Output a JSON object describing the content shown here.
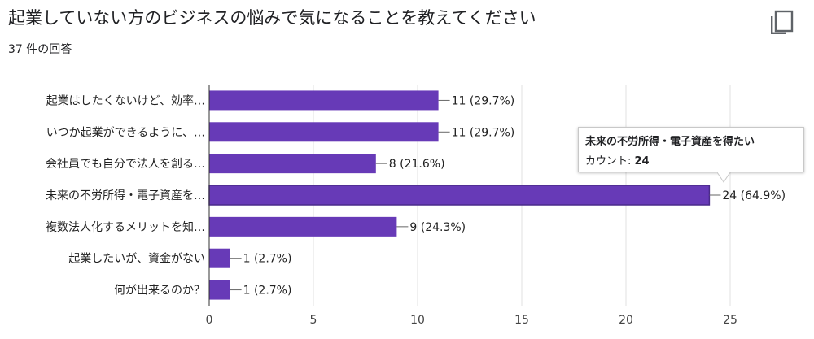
{
  "header": {
    "title": "起業していない方のビジネスの悩みで気になることを教えてください",
    "response_count": "37 件の回答"
  },
  "tooltip": {
    "title": "未来の不労所得・電子資産を得たい",
    "count_label": "カウント: ",
    "count_value": "24"
  },
  "colors": {
    "bar": "#673ab7",
    "bar_highlight": "#673ab7",
    "axis": "#333333",
    "grid": "#e0e0e0"
  },
  "chart_data": {
    "type": "bar",
    "orientation": "horizontal",
    "categories": [
      "起業はしたくないけど、効率…",
      "いつか起業ができるように、…",
      "会社員でも自分で法人を創る…",
      "未来の不労所得・電子資産を…",
      "複数法人化するメリットを知…",
      "起業したいが、資金がない",
      "何が出来るのか？"
    ],
    "values": [
      11,
      11,
      8,
      24,
      9,
      1,
      1
    ],
    "data_labels": [
      "11 (29.7%)",
      "11 (29.7%)",
      "8 (21.6%)",
      "24 (64.9%)",
      "9 (24.3%)",
      "1 (2.7%)",
      "1 (2.7%)"
    ],
    "xlim": [
      0,
      25
    ],
    "xticks": [
      0,
      5,
      10,
      15,
      20,
      25
    ],
    "highlighted_index": 3,
    "grid": true
  }
}
